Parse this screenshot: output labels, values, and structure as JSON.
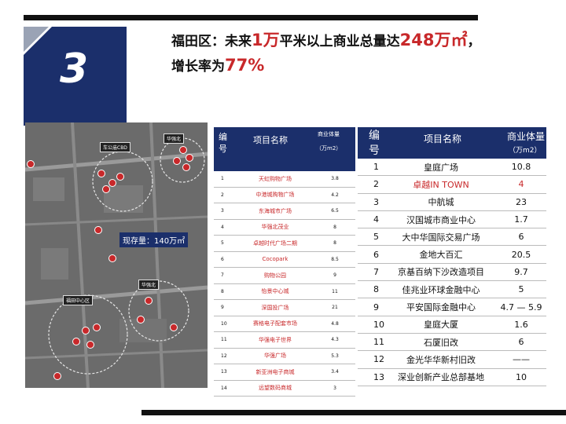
{
  "slide": {
    "number": "3",
    "title_line1_pre": "福田区：未来",
    "title_hl1": "1万",
    "title_line1_mid": "平米以上商业总量达",
    "title_hl2": "248万㎡",
    "title_line1_post": "，",
    "title_line2_pre": "增长率为",
    "title_hl3": "77%"
  },
  "colors": {
    "navy": "#1b2f6b",
    "red": "#c8282a"
  },
  "map": {
    "tags": [
      "华强北",
      "车公庙CBD",
      "华强北",
      "福田中心区"
    ],
    "stock_label": "现存量：140万㎡"
  },
  "table_left": {
    "header_no": "编号",
    "header_name": "项目名称",
    "header_vol": "商业体量",
    "header_unit": "（万m2）",
    "rows": [
      {
        "no": "1",
        "name": "天虹购物广场",
        "vol": "3.8"
      },
      {
        "no": "2",
        "name": "中港城购物广场",
        "vol": "4.2"
      },
      {
        "no": "3",
        "name": "东海城市广场",
        "vol": "6.5"
      },
      {
        "no": "4",
        "name": "华强北茂业",
        "vol": "8"
      },
      {
        "no": "5",
        "name": "卓越时代广场二期",
        "vol": "8"
      },
      {
        "no": "6",
        "name": "Cocopark",
        "vol": "8.5"
      },
      {
        "no": "7",
        "name": "购物公园",
        "vol": "9"
      },
      {
        "no": "8",
        "name": "怡景中心城",
        "vol": "11"
      },
      {
        "no": "9",
        "name": "深国投广场",
        "vol": "21"
      },
      {
        "no": "10",
        "name": "赛格电子配套市场",
        "vol": "4.8"
      },
      {
        "no": "11",
        "name": "华强电子世界",
        "vol": "4.3"
      },
      {
        "no": "12",
        "name": "华强广场",
        "vol": "5.3"
      },
      {
        "no": "13",
        "name": "新亚洲电子商城",
        "vol": "3.4"
      },
      {
        "no": "14",
        "name": "远望数码商城",
        "vol": "3"
      }
    ]
  },
  "table_right": {
    "header_no": "编号",
    "header_name": "项目名称",
    "header_vol": "商业体量",
    "header_unit": "（万m2）",
    "rows": [
      {
        "no": "1",
        "name": "皇庭广场",
        "vol": "10.8"
      },
      {
        "no": "2",
        "name": "卓越IN TOWN",
        "vol": "4"
      },
      {
        "no": "3",
        "name": "中航城",
        "vol": "23"
      },
      {
        "no": "4",
        "name": "汉国城市商业中心",
        "vol": "1.7"
      },
      {
        "no": "5",
        "name": "大中华国际交易广场",
        "vol": "6"
      },
      {
        "no": "6",
        "name": "金地大百汇",
        "vol": "20.5"
      },
      {
        "no": "7",
        "name": "京基百纳下沙改造项目",
        "vol": "9.7"
      },
      {
        "no": "8",
        "name": "佳兆业环球金融中心",
        "vol": "5"
      },
      {
        "no": "9",
        "name": "平安国际金融中心",
        "vol": "4.7 — 5.9"
      },
      {
        "no": "10",
        "name": "皇庭大厦",
        "vol": "1.6"
      },
      {
        "no": "11",
        "name": "石厦旧改",
        "vol": "6"
      },
      {
        "no": "12",
        "name": "金光华华新村旧改",
        "vol": "——"
      },
      {
        "no": "13",
        "name": "深业创新产业总部基地",
        "vol": "10"
      }
    ]
  }
}
